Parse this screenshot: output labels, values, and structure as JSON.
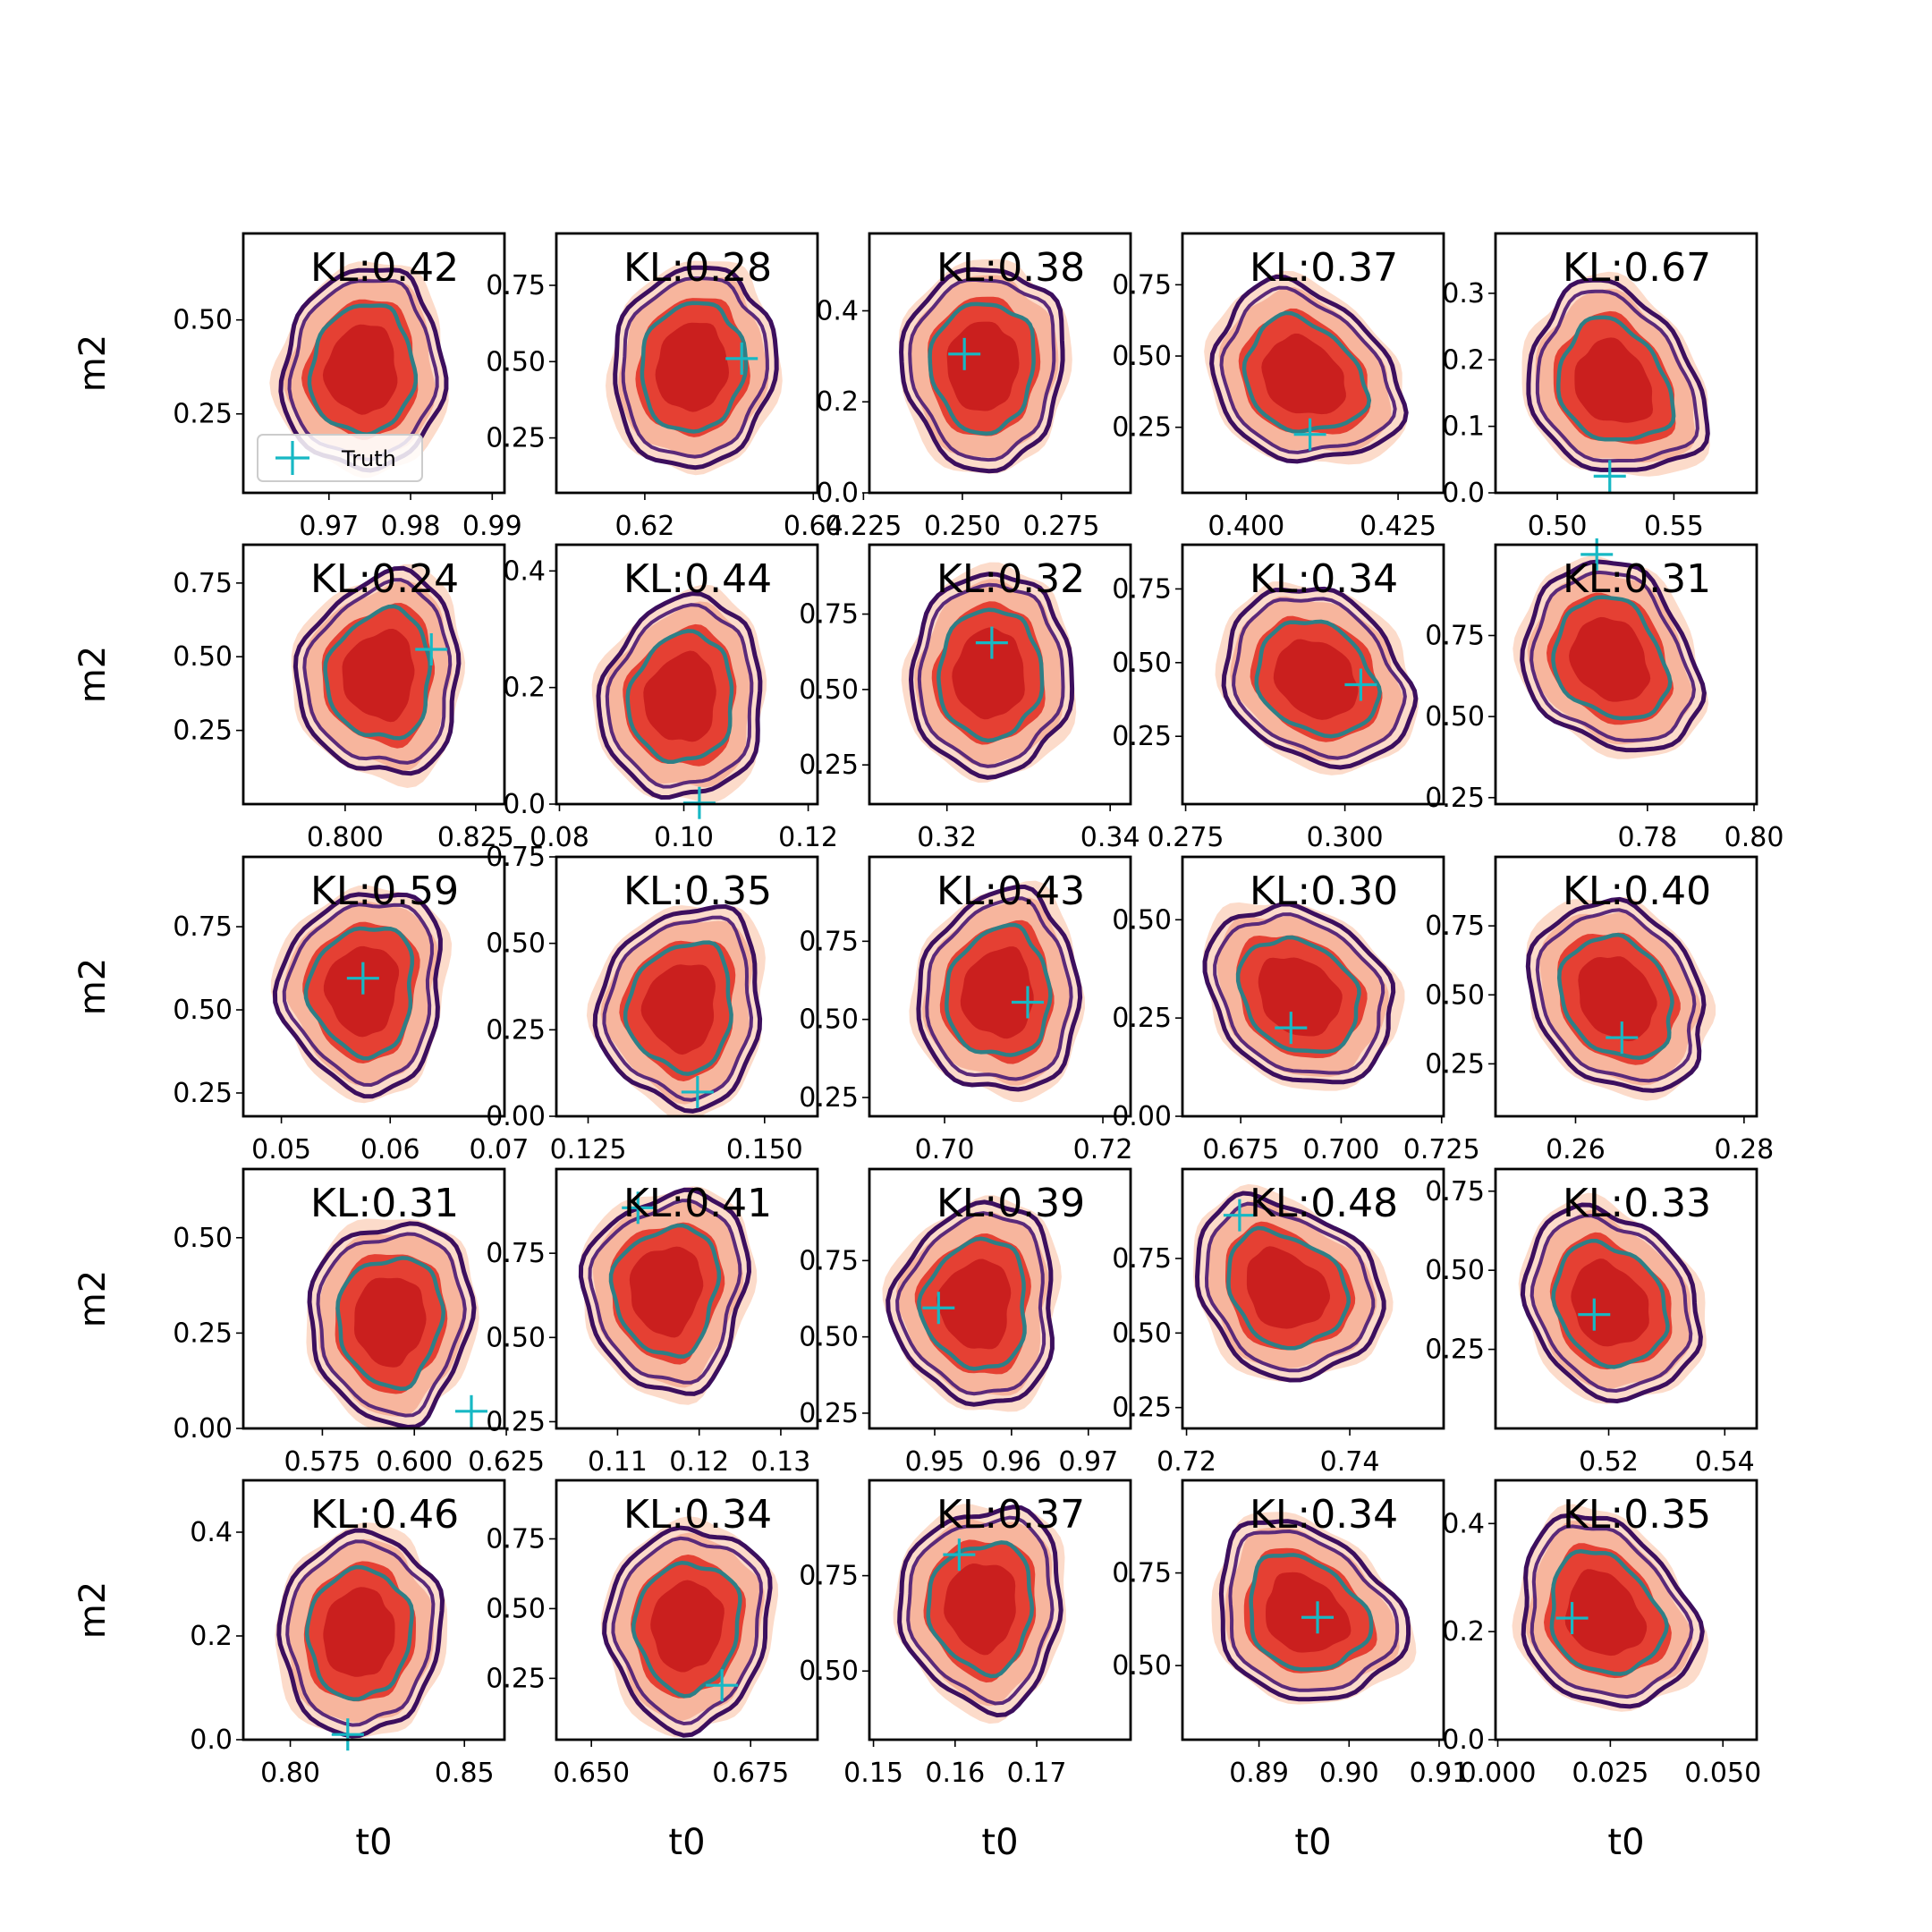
{
  "colors": {
    "fill_light": "#fcd9c7",
    "fill_mid": "#f7b39a",
    "fill_core": "#e43a2d",
    "fill_center": "#c81d1d",
    "contour_outer": "#3c0f5e",
    "contour_second": "#5a2a7a",
    "contour_inner": "#2e7f86",
    "truth": "#17b8c4"
  },
  "legend": {
    "truth_label": "Truth"
  },
  "chart_data": [
    {
      "type": "scatter",
      "row": 0,
      "col": 0,
      "kl_label": "KL:0.42",
      "xlabel": "",
      "ylabel": "m2",
      "xlim": [
        0.9595,
        0.9915
      ],
      "ylim": [
        0.04,
        0.73
      ],
      "xticks": [
        0.97,
        0.98,
        0.99
      ],
      "xtick_labels": [
        "0.97",
        "0.98",
        "0.99"
      ],
      "yticks": [
        0.25,
        0.5
      ],
      "ytick_labels": [
        "0.25",
        "0.50"
      ],
      "truth": null
    },
    {
      "type": "scatter",
      "row": 0,
      "col": 1,
      "kl_label": "KL:0.28",
      "xlabel": "",
      "ylabel": "",
      "xlim": [
        0.6095,
        0.6405
      ],
      "ylim": [
        0.07,
        0.92
      ],
      "xticks": [
        0.62,
        0.64
      ],
      "xtick_labels": [
        "0.62",
        "0.64"
      ],
      "yticks": [
        0.25,
        0.5,
        0.75
      ],
      "ytick_labels": [
        "0.25",
        "0.50",
        "0.75"
      ],
      "truth": [
        0.6315,
        0.51
      ]
    },
    {
      "type": "scatter",
      "row": 0,
      "col": 2,
      "kl_label": "KL:0.38",
      "xlabel": "",
      "ylabel": "",
      "xlim": [
        0.2265,
        0.2925
      ],
      "ylim": [
        0.0,
        0.57
      ],
      "xticks": [
        0.225,
        0.25,
        0.275
      ],
      "xtick_labels": [
        "0.225",
        "0.250",
        "0.275"
      ],
      "yticks": [
        0.0,
        0.2,
        0.4
      ],
      "ytick_labels": [
        "0.0",
        "0.2",
        "0.4"
      ],
      "truth": [
        0.2505,
        0.305
      ]
    },
    {
      "type": "scatter",
      "row": 0,
      "col": 3,
      "kl_label": "KL:0.37",
      "xlabel": "",
      "ylabel": "",
      "xlim": [
        0.3895,
        0.4325
      ],
      "ylim": [
        0.02,
        0.93
      ],
      "xticks": [
        0.4,
        0.425
      ],
      "xtick_labels": [
        "0.400",
        "0.425"
      ],
      "yticks": [
        0.25,
        0.5,
        0.75
      ],
      "ytick_labels": [
        "0.25",
        "0.50",
        "0.75"
      ],
      "truth": [
        0.4105,
        0.225
      ]
    },
    {
      "type": "scatter",
      "row": 0,
      "col": 4,
      "kl_label": "KL:0.67",
      "xlabel": "",
      "ylabel": "",
      "xlim": [
        0.4735,
        0.5855
      ],
      "ylim": [
        0.0,
        0.39
      ],
      "xticks": [
        0.5,
        0.55
      ],
      "xtick_labels": [
        "0.50",
        "0.55"
      ],
      "yticks": [
        0.0,
        0.1,
        0.2,
        0.3
      ],
      "ytick_labels": [
        "0.0",
        "0.1",
        "0.2",
        "0.3"
      ],
      "truth": [
        0.5225,
        0.025
      ]
    },
    {
      "type": "scatter",
      "row": 1,
      "col": 0,
      "kl_label": "KL:0.24",
      "xlabel": "",
      "ylabel": "m2",
      "xlim": [
        0.7805,
        0.8305
      ],
      "ylim": [
        0.0,
        0.88
      ],
      "xticks": [
        0.8,
        0.825
      ],
      "xtick_labels": [
        "0.800",
        "0.825"
      ],
      "yticks": [
        0.25,
        0.5,
        0.75
      ],
      "ytick_labels": [
        "0.25",
        "0.50",
        "0.75"
      ],
      "truth": [
        0.8165,
        0.525
      ]
    },
    {
      "type": "scatter",
      "row": 1,
      "col": 1,
      "kl_label": "KL:0.44",
      "xlabel": "",
      "ylabel": "",
      "xlim": [
        0.0795,
        0.1215
      ],
      "ylim": [
        0.0,
        0.445
      ],
      "xticks": [
        0.08,
        0.1,
        0.12
      ],
      "xtick_labels": [
        "0.08",
        "0.10",
        "0.12"
      ],
      "yticks": [
        0.0,
        0.2,
        0.4
      ],
      "ytick_labels": [
        "0.0",
        "0.2",
        "0.4"
      ],
      "truth": [
        0.1025,
        0.002
      ]
    },
    {
      "type": "scatter",
      "row": 1,
      "col": 2,
      "kl_label": "KL:0.32",
      "xlabel": "",
      "ylabel": "",
      "xlim": [
        0.3105,
        0.3425
      ],
      "ylim": [
        0.12,
        0.98
      ],
      "xticks": [
        0.32,
        0.34
      ],
      "xtick_labels": [
        "0.32",
        "0.34"
      ],
      "yticks": [
        0.25,
        0.5,
        0.75
      ],
      "ytick_labels": [
        "0.25",
        "0.50",
        "0.75"
      ],
      "truth": [
        0.3255,
        0.655
      ]
    },
    {
      "type": "scatter",
      "row": 1,
      "col": 3,
      "kl_label": "KL:0.34",
      "xlabel": "",
      "ylabel": "",
      "xlim": [
        0.2745,
        0.3155
      ],
      "ylim": [
        0.02,
        0.9
      ],
      "xticks": [
        0.275,
        0.3
      ],
      "xtick_labels": [
        "0.275",
        "0.300"
      ],
      "yticks": [
        0.25,
        0.5,
        0.75
      ],
      "ytick_labels": [
        "0.25",
        "0.50",
        "0.75"
      ],
      "truth": [
        0.3025,
        0.425
      ]
    },
    {
      "type": "scatter",
      "row": 1,
      "col": 4,
      "kl_label": "KL:0.31",
      "xlabel": "",
      "ylabel": "",
      "xlim": [
        0.7515,
        0.8005
      ],
      "ylim": [
        0.23,
        1.03
      ],
      "xticks": [
        0.78,
        0.8
      ],
      "xtick_labels": [
        "0.78",
        "0.80"
      ],
      "yticks": [
        0.25,
        0.5,
        0.75
      ],
      "ytick_labels": [
        "0.25",
        "0.50",
        "0.75"
      ],
      "truth": [
        0.7705,
        1.0
      ]
    },
    {
      "type": "scatter",
      "row": 2,
      "col": 0,
      "kl_label": "KL:0.59",
      "xlabel": "",
      "ylabel": "m2",
      "xlim": [
        0.0465,
        0.0705
      ],
      "ylim": [
        0.18,
        0.96
      ],
      "xticks": [
        0.05,
        0.06,
        0.07
      ],
      "xtick_labels": [
        "0.05",
        "0.06",
        "0.07"
      ],
      "yticks": [
        0.25,
        0.5,
        0.75
      ],
      "ytick_labels": [
        "0.25",
        "0.50",
        "0.75"
      ],
      "truth": [
        0.0575,
        0.595
      ]
    },
    {
      "type": "scatter",
      "row": 2,
      "col": 1,
      "kl_label": "KL:0.35",
      "xlabel": "",
      "ylabel": "",
      "xlim": [
        0.1205,
        0.1575
      ],
      "ylim": [
        0.0,
        0.75
      ],
      "xticks": [
        0.125,
        0.15
      ],
      "xtick_labels": [
        "0.125",
        "0.150"
      ],
      "yticks": [
        0.0,
        0.25,
        0.5,
        0.75
      ],
      "ytick_labels": [
        "0.00",
        "0.25",
        "0.50",
        "0.75"
      ],
      "truth": [
        0.1405,
        0.07
      ]
    },
    {
      "type": "scatter",
      "row": 2,
      "col": 2,
      "kl_label": "KL:0.43",
      "xlabel": "",
      "ylabel": "",
      "xlim": [
        0.6905,
        0.7235
      ],
      "ylim": [
        0.19,
        1.02
      ],
      "xticks": [
        0.7,
        0.72
      ],
      "xtick_labels": [
        "0.70",
        "0.72"
      ],
      "yticks": [
        0.25,
        0.5,
        0.75
      ],
      "ytick_labels": [
        "0.25",
        "0.50",
        "0.75"
      ],
      "truth": [
        0.7105,
        0.555
      ]
    },
    {
      "type": "scatter",
      "row": 2,
      "col": 3,
      "kl_label": "KL:0.30",
      "xlabel": "",
      "ylabel": "",
      "xlim": [
        0.6605,
        0.7255
      ],
      "ylim": [
        0.0,
        0.66
      ],
      "xticks": [
        0.675,
        0.7,
        0.725
      ],
      "xtick_labels": [
        "0.675",
        "0.700",
        "0.725"
      ],
      "yticks": [
        0.0,
        0.25,
        0.5
      ],
      "ytick_labels": [
        "0.00",
        "0.25",
        "0.50"
      ],
      "truth": [
        0.6875,
        0.225
      ]
    },
    {
      "type": "scatter",
      "row": 2,
      "col": 4,
      "kl_label": "KL:0.40",
      "xlabel": "",
      "ylabel": "",
      "xlim": [
        0.2505,
        0.2815
      ],
      "ylim": [
        0.06,
        1.0
      ],
      "xticks": [
        0.26,
        0.28
      ],
      "xtick_labels": [
        "0.26",
        "0.28"
      ],
      "yticks": [
        0.25,
        0.5,
        0.75
      ],
      "ytick_labels": [
        "0.25",
        "0.50",
        "0.75"
      ],
      "truth": [
        0.2655,
        0.345
      ]
    },
    {
      "type": "scatter",
      "row": 3,
      "col": 0,
      "kl_label": "KL:0.31",
      "xlabel": "",
      "ylabel": "m2",
      "xlim": [
        0.5535,
        0.6245
      ],
      "ylim": [
        0.0,
        0.68
      ],
      "xticks": [
        0.575,
        0.6,
        0.625
      ],
      "xtick_labels": [
        "0.575",
        "0.600",
        "0.625"
      ],
      "yticks": [
        0.0,
        0.25,
        0.5
      ],
      "ytick_labels": [
        "0.00",
        "0.25",
        "0.50"
      ],
      "truth": [
        0.6155,
        0.045
      ]
    },
    {
      "type": "scatter",
      "row": 3,
      "col": 1,
      "kl_label": "KL:0.41",
      "xlabel": "",
      "ylabel": "",
      "xlim": [
        0.1025,
        0.1345
      ],
      "ylim": [
        0.23,
        1.0
      ],
      "xticks": [
        0.11,
        0.12,
        0.13
      ],
      "xtick_labels": [
        "0.11",
        "0.12",
        "0.13"
      ],
      "yticks": [
        0.25,
        0.5,
        0.75
      ],
      "ytick_labels": [
        "0.25",
        "0.50",
        "0.75"
      ],
      "truth": [
        0.1125,
        0.885
      ]
    },
    {
      "type": "scatter",
      "row": 3,
      "col": 2,
      "kl_label": "KL:0.39",
      "xlabel": "",
      "ylabel": "",
      "xlim": [
        0.9415,
        0.9755
      ],
      "ylim": [
        0.2,
        1.05
      ],
      "xticks": [
        0.95,
        0.96,
        0.97
      ],
      "xtick_labels": [
        "0.95",
        "0.96",
        "0.97"
      ],
      "yticks": [
        0.25,
        0.5,
        0.75
      ],
      "ytick_labels": [
        "0.25",
        "0.50",
        "0.75"
      ],
      "truth": [
        0.9505,
        0.595
      ]
    },
    {
      "type": "scatter",
      "row": 3,
      "col": 3,
      "kl_label": "KL:0.48",
      "xlabel": "",
      "ylabel": "",
      "xlim": [
        0.7195,
        0.7515
      ],
      "ylim": [
        0.18,
        1.05
      ],
      "xticks": [
        0.72,
        0.74
      ],
      "xtick_labels": [
        "0.72",
        "0.74"
      ],
      "yticks": [
        0.25,
        0.5,
        0.75
      ],
      "ytick_labels": [
        "0.25",
        "0.50",
        "0.75"
      ],
      "truth": [
        0.7265,
        0.895
      ]
    },
    {
      "type": "scatter",
      "row": 3,
      "col": 4,
      "kl_label": "KL:0.33",
      "xlabel": "",
      "ylabel": "",
      "xlim": [
        0.5005,
        0.5455
      ],
      "ylim": [
        0.0,
        0.82
      ],
      "xticks": [
        0.52,
        0.54
      ],
      "xtick_labels": [
        "0.52",
        "0.54"
      ],
      "yticks": [
        0.25,
        0.5,
        0.75
      ],
      "ytick_labels": [
        "0.25",
        "0.50",
        "0.75"
      ],
      "truth": [
        0.5175,
        0.36
      ]
    },
    {
      "type": "scatter",
      "row": 4,
      "col": 0,
      "kl_label": "KL:0.46",
      "xlabel": "t0",
      "ylabel": "m2",
      "xlim": [
        0.7865,
        0.8615
      ],
      "ylim": [
        0.0,
        0.5
      ],
      "xticks": [
        0.8,
        0.85
      ],
      "xtick_labels": [
        "0.80",
        "0.85"
      ],
      "yticks": [
        0.0,
        0.2,
        0.4
      ],
      "ytick_labels": [
        "0.0",
        "0.2",
        "0.4"
      ],
      "truth": [
        0.8165,
        0.01
      ]
    },
    {
      "type": "scatter",
      "row": 4,
      "col": 1,
      "kl_label": "KL:0.34",
      "xlabel": "t0",
      "ylabel": "",
      "xlim": [
        0.6445,
        0.6855
      ],
      "ylim": [
        0.03,
        0.96
      ],
      "xticks": [
        0.65,
        0.675
      ],
      "xtick_labels": [
        "0.650",
        "0.675"
      ],
      "yticks": [
        0.25,
        0.5,
        0.75
      ],
      "ytick_labels": [
        "0.25",
        "0.50",
        "0.75"
      ],
      "truth": [
        0.6705,
        0.225
      ]
    },
    {
      "type": "scatter",
      "row": 4,
      "col": 2,
      "kl_label": "KL:0.37",
      "xlabel": "t0",
      "ylabel": "",
      "xlim": [
        0.1495,
        0.1815
      ],
      "ylim": [
        0.32,
        1.0
      ],
      "xticks": [
        0.15,
        0.16,
        0.17
      ],
      "xtick_labels": [
        "0.15",
        "0.16",
        "0.17"
      ],
      "yticks": [
        0.5,
        0.75
      ],
      "ytick_labels": [
        "0.50",
        "0.75"
      ],
      "truth": [
        0.1605,
        0.805
      ]
    },
    {
      "type": "scatter",
      "row": 4,
      "col": 3,
      "kl_label": "KL:0.34",
      "xlabel": "t0",
      "ylabel": "",
      "xlim": [
        0.8815,
        0.9105
      ],
      "ylim": [
        0.3,
        1.0
      ],
      "xticks": [
        0.89,
        0.9,
        0.91
      ],
      "xtick_labels": [
        "0.89",
        "0.90",
        "0.91"
      ],
      "yticks": [
        0.5,
        0.75
      ],
      "ytick_labels": [
        "0.50",
        "0.75"
      ],
      "truth": [
        0.8965,
        0.63
      ]
    },
    {
      "type": "scatter",
      "row": 4,
      "col": 4,
      "kl_label": "KL:0.35",
      "xlabel": "t0",
      "ylabel": "",
      "xlim": [
        -0.0005,
        0.0575
      ],
      "ylim": [
        0.0,
        0.48
      ],
      "xticks": [
        0.0,
        0.025,
        0.05
      ],
      "xtick_labels": [
        "0.000",
        "0.025",
        "0.050"
      ],
      "yticks": [
        0.0,
        0.2,
        0.4
      ],
      "ytick_labels": [
        "0.0",
        "0.2",
        "0.4"
      ],
      "truth": [
        0.0165,
        0.225
      ]
    }
  ]
}
